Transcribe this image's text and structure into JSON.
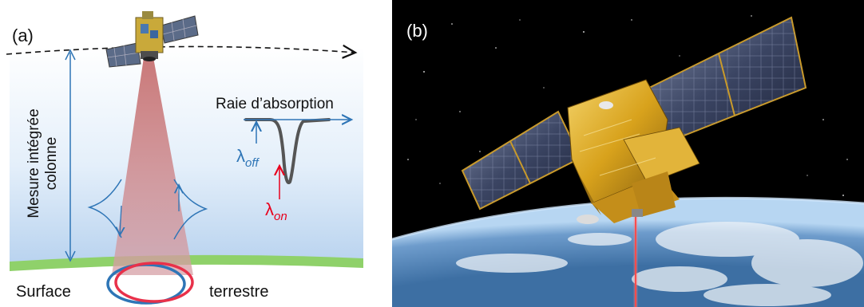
{
  "panel_a": {
    "label": "(a)",
    "vertical_label": [
      "Mesure intégrée",
      "colonne"
    ],
    "absorption_title": "Raie d’absorption",
    "lambda_symbol": "λ",
    "lambda_off_sub": "off",
    "lambda_on_sub": "on",
    "surface_left": "Surface",
    "surface_right": "terrestre",
    "colors": {
      "off": "#2e75b6",
      "on": "#e8001c",
      "ground": "#8fd16a",
      "beam": "#c98080"
    }
  },
  "panel_b": {
    "label": "(b)",
    "colors": {
      "space": "#000000",
      "earth": "#2a5a8c",
      "laser": "#ff3030",
      "gold": "#d8a21c"
    }
  }
}
